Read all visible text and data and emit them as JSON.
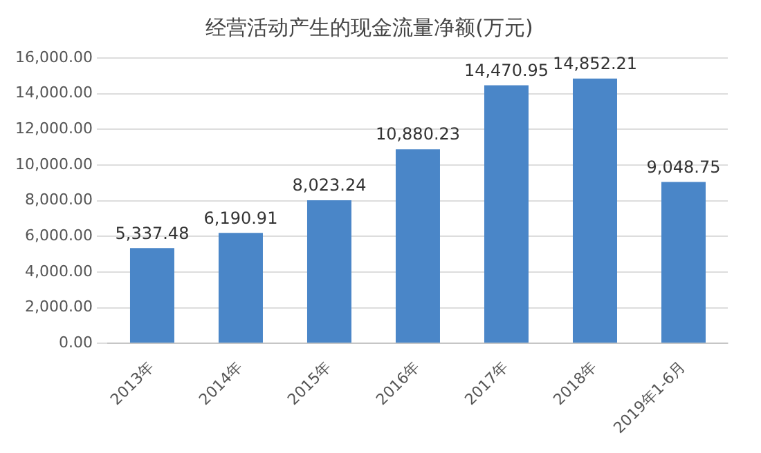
{
  "chart_data": {
    "type": "bar",
    "title": "经营活动产生的现金流量净额(万元)",
    "categories": [
      "2013年",
      "2014年",
      "2015年",
      "2016年",
      "2017年",
      "2018年",
      "2019年1-6月"
    ],
    "values": [
      5337.48,
      6190.91,
      8023.24,
      10880.23,
      14470.95,
      14852.21,
      9048.75
    ],
    "value_labels": [
      "5,337.48",
      "6,190.91",
      "8,023.24",
      "10,880.23",
      "14,470.95",
      "14,852.21",
      "9,048.75"
    ],
    "color": "#4a86c8",
    "ylim": [
      0,
      16000
    ],
    "yticks": [
      {
        "value": 0,
        "label": "0.00"
      },
      {
        "value": 2000,
        "label": "2,000.00"
      },
      {
        "value": 4000,
        "label": "4,000.00"
      },
      {
        "value": 6000,
        "label": "6,000.00"
      },
      {
        "value": 8000,
        "label": "8,000.00"
      },
      {
        "value": 10000,
        "label": "10,000.00"
      },
      {
        "value": 12000,
        "label": "12,000.00"
      },
      {
        "value": 14000,
        "label": "14,000.00"
      },
      {
        "value": 16000,
        "label": "16,000.00"
      }
    ],
    "grid": "y",
    "legend": false
  }
}
